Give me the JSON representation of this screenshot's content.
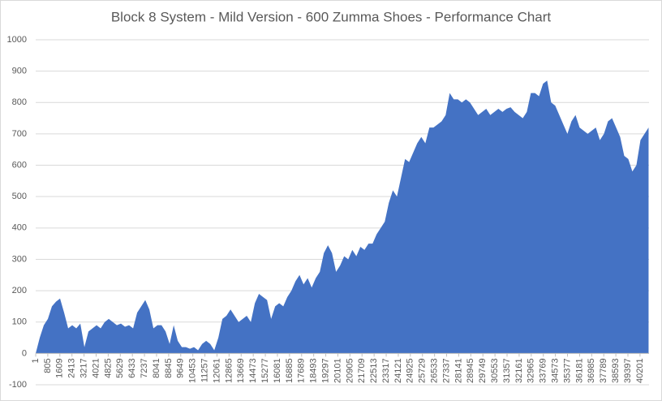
{
  "chart_data": {
    "type": "area",
    "title": "Block 8 System - Mild Version - 600 Zumma Shoes - Performance Chart",
    "color": "#4472c4",
    "grid": true,
    "xlim": [
      1,
      40800
    ],
    "ylim": [
      -100,
      1000
    ],
    "yticks": [
      -100,
      0,
      100,
      200,
      300,
      400,
      500,
      600,
      700,
      800,
      900,
      1000
    ],
    "xticks": [
      1,
      805,
      1609,
      2413,
      3217,
      4021,
      4825,
      5629,
      6433,
      7237,
      8041,
      8845,
      9649,
      10453,
      11257,
      12061,
      12865,
      13669,
      14473,
      15277,
      16081,
      16885,
      17689,
      18493,
      19297,
      20101,
      20905,
      21709,
      22513,
      23317,
      24121,
      24925,
      25729,
      26533,
      27337,
      28141,
      28945,
      29749,
      30553,
      31357,
      32161,
      32965,
      33769,
      34573,
      35377,
      36181,
      36985,
      37789,
      38593,
      39397,
      40201
    ],
    "x": [
      1,
      271,
      541,
      811,
      1081,
      1351,
      1621,
      1891,
      2161,
      2431,
      2701,
      2971,
      3241,
      3511,
      3781,
      4051,
      4321,
      4591,
      4861,
      5131,
      5401,
      5671,
      5941,
      6211,
      6481,
      6751,
      7021,
      7291,
      7561,
      7831,
      8101,
      8371,
      8641,
      8911,
      9181,
      9451,
      9721,
      9991,
      10261,
      10531,
      10801,
      11071,
      11341,
      11611,
      11881,
      12151,
      12421,
      12691,
      12961,
      13231,
      13501,
      13771,
      14041,
      14311,
      14581,
      14851,
      15121,
      15391,
      15661,
      15931,
      16201,
      16471,
      16741,
      17011,
      17281,
      17551,
      17821,
      18091,
      18361,
      18631,
      18901,
      19171,
      19441,
      19711,
      19981,
      20251,
      20521,
      20791,
      21061,
      21331,
      21601,
      21871,
      22141,
      22411,
      22681,
      22951,
      23221,
      23491,
      23761,
      24031,
      24301,
      24571,
      24841,
      25111,
      25381,
      25651,
      25921,
      26191,
      26461,
      26731,
      27001,
      27271,
      27541,
      27811,
      28081,
      28351,
      28621,
      28891,
      29161,
      29431,
      29701,
      29971,
      30241,
      30511,
      30781,
      31051,
      31321,
      31591,
      31861,
      32131,
      32401,
      32671,
      32941,
      33211,
      33481,
      33751,
      34021,
      34291,
      34561,
      34831,
      35101,
      35371,
      35641,
      35911,
      36181,
      36451,
      36721,
      36991,
      37261,
      37531,
      37801,
      38071,
      38341,
      38611,
      38881,
      39151,
      39421,
      39691,
      39961,
      40231,
      40501,
      40771
    ],
    "values": [
      0,
      50,
      90,
      110,
      150,
      165,
      175,
      130,
      80,
      90,
      80,
      95,
      20,
      70,
      80,
      90,
      80,
      100,
      110,
      100,
      90,
      95,
      85,
      90,
      80,
      130,
      150,
      170,
      140,
      80,
      90,
      90,
      70,
      30,
      90,
      40,
      20,
      20,
      15,
      20,
      10,
      30,
      40,
      30,
      10,
      50,
      110,
      120,
      140,
      120,
      100,
      110,
      120,
      100,
      160,
      190,
      180,
      170,
      110,
      150,
      160,
      150,
      180,
      200,
      230,
      250,
      220,
      240,
      210,
      240,
      260,
      320,
      345,
      320,
      260,
      280,
      310,
      300,
      330,
      310,
      340,
      330,
      350,
      350,
      380,
      400,
      420,
      480,
      520,
      500,
      560,
      620,
      610,
      640,
      670,
      690,
      670,
      720,
      720,
      730,
      740,
      760,
      830,
      810,
      810,
      800,
      810,
      800,
      780,
      760,
      770,
      780,
      760,
      770,
      780,
      770,
      780,
      785,
      770,
      760,
      750,
      770,
      830,
      830,
      820,
      860,
      870,
      800,
      790,
      760,
      730,
      700,
      740,
      760,
      720,
      710,
      700,
      710,
      720,
      680,
      700,
      740,
      750,
      720,
      690,
      630,
      620,
      580,
      600,
      680,
      700,
      720
    ]
  }
}
